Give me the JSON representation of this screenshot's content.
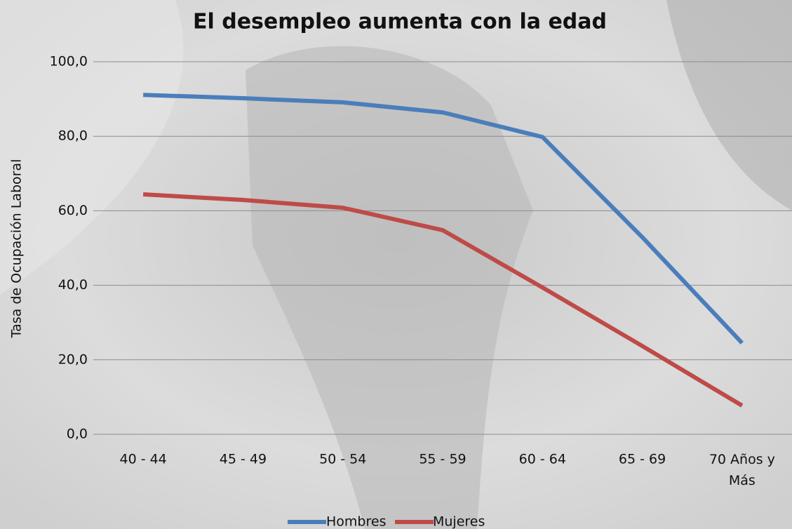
{
  "chart_data": {
    "type": "line",
    "title": "El desempleo aumenta con la edad",
    "y_label": "Tasa de Ocupación Laboral",
    "categories": [
      "40 - 44",
      "45 - 49",
      "50 - 54",
      "55 - 59",
      "60 - 64",
      "65 - 69",
      "70 Años y Más"
    ],
    "series": [
      {
        "name": "Hombres",
        "color": "#4a7ebb",
        "values": [
          91.1,
          90.2,
          89.1,
          86.4,
          79.8,
          52.9,
          24.5
        ]
      },
      {
        "name": "Mujeres",
        "color": "#be4b48",
        "values": [
          64.4,
          62.9,
          60.8,
          54.8,
          39.4,
          23.7,
          7.7
        ]
      }
    ],
    "ylim": [
      0,
      100
    ],
    "yticks": [
      {
        "value": 0,
        "label": "0,0"
      },
      {
        "value": 20,
        "label": "20,0"
      },
      {
        "value": 40,
        "label": "40,0"
      },
      {
        "value": 60,
        "label": "60,0"
      },
      {
        "value": 80,
        "label": "80,0"
      },
      {
        "value": 100,
        "label": "100,0"
      }
    ],
    "grid": true,
    "legend": "bottom"
  }
}
